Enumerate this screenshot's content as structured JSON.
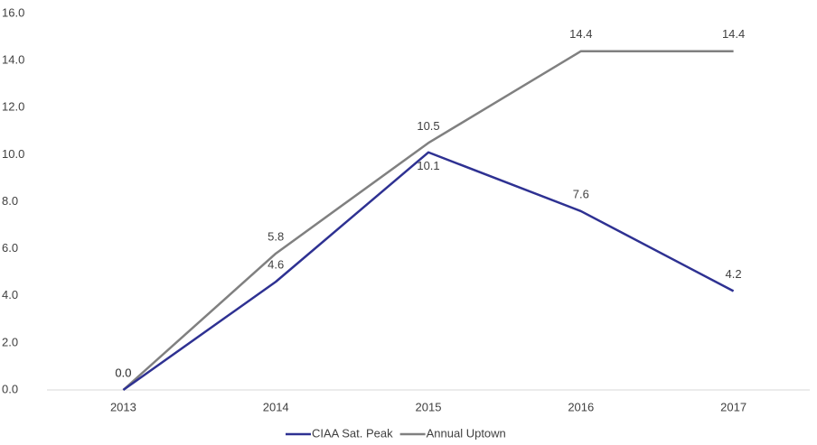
{
  "chart_data": {
    "type": "line",
    "categories": [
      "2013",
      "2014",
      "2015",
      "2016",
      "2017"
    ],
    "series": [
      {
        "name": "CIAA Sat. Peak",
        "color": "#2e3192",
        "values": [
          0,
          4.6,
          10.1,
          7.6,
          4.2
        ],
        "value_labels": [
          "0.0",
          "4.6",
          "10.1",
          "7.6",
          "4.2"
        ]
      },
      {
        "name": "Annual Uptown",
        "color": "#808080",
        "values": [
          0,
          5.8,
          10.5,
          14.4,
          14.4
        ],
        "value_labels": [
          "0.0",
          "5.8",
          "10.5",
          "14.4",
          "14.4"
        ]
      }
    ],
    "ylim": [
      0,
      16
    ],
    "yticks": [
      {
        "value": 0,
        "label": "0.0"
      },
      {
        "value": 2,
        "label": "2.0"
      },
      {
        "value": 4,
        "label": "4.0"
      },
      {
        "value": 6,
        "label": "6.0"
      },
      {
        "value": 8,
        "label": "8.0"
      },
      {
        "value": 10,
        "label": "10.0"
      },
      {
        "value": 12,
        "label": "12.0"
      },
      {
        "value": 14,
        "label": "14.0"
      },
      {
        "value": 16,
        "label": "16.0"
      }
    ],
    "grid": false,
    "legend": "bottom"
  }
}
